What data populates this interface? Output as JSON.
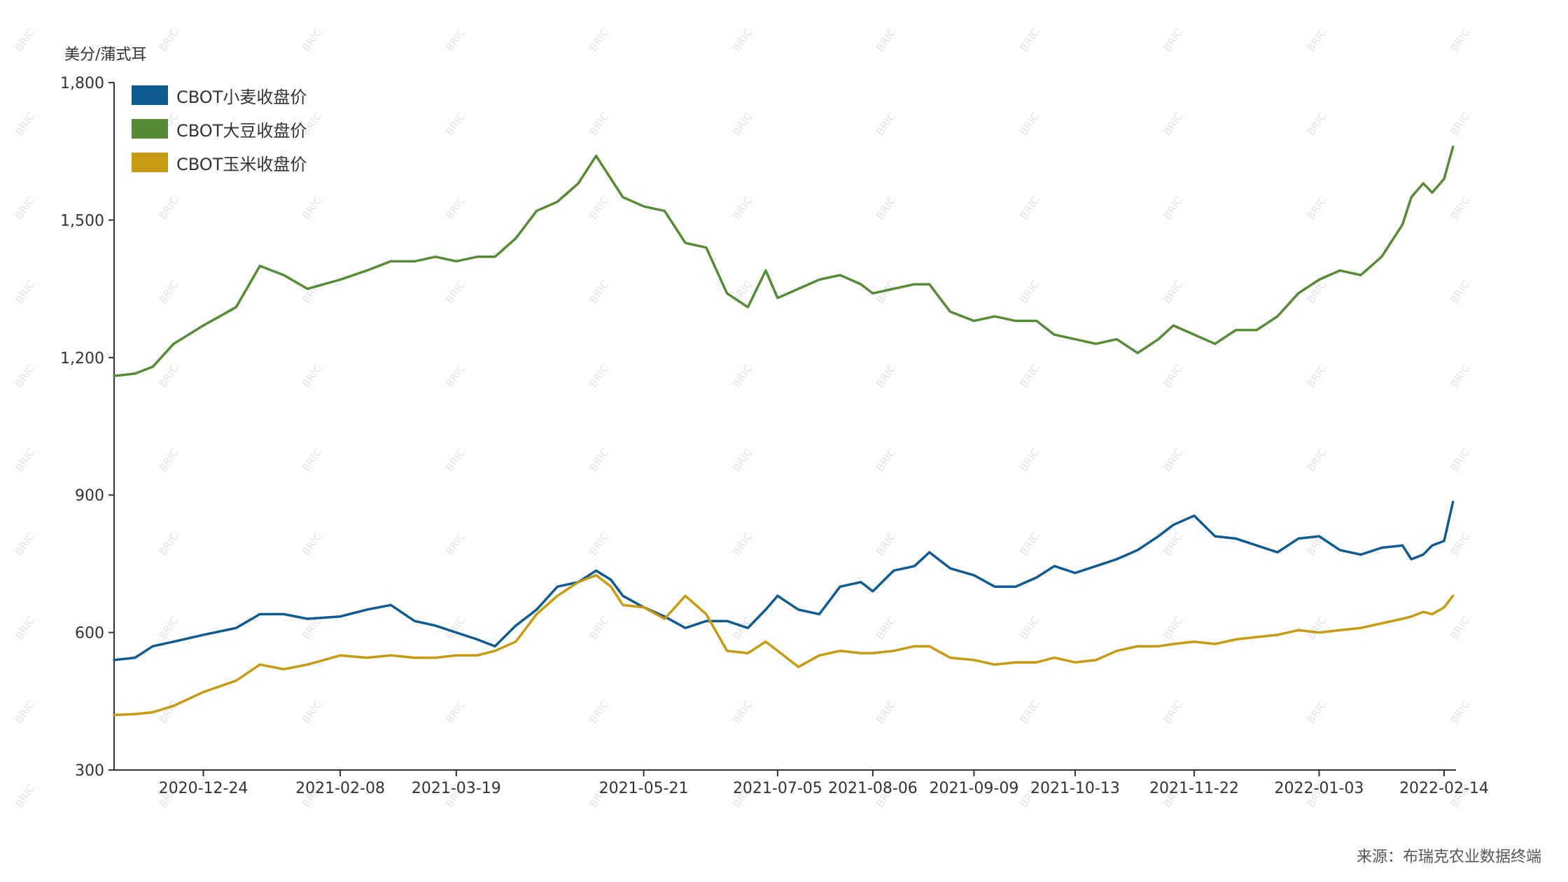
{
  "chart_data": {
    "type": "line",
    "ylabel": "美分/蒲式耳",
    "source": "来源：布瑞克农业数据终端",
    "ylim": [
      300,
      1800
    ],
    "yticks": [
      300,
      600,
      900,
      1200,
      1500,
      1800
    ],
    "ytick_labels": [
      "300",
      "600",
      "900",
      "1,200",
      "1,500",
      "1,800"
    ],
    "xlim": [
      "2020-11-24",
      "2022-02-18"
    ],
    "xticks": [
      "2020-12-24",
      "2021-02-08",
      "2021-03-19",
      "2021-05-21",
      "2021-07-05",
      "2021-08-06",
      "2021-09-09",
      "2021-10-13",
      "2021-11-22",
      "2022-01-03",
      "2022-02-14"
    ],
    "grid": false,
    "legend_position": "top-left",
    "watermark": "BRIC",
    "series": [
      {
        "name": "CBOT小麦收盘价",
        "color": "#0e5a93",
        "points": [
          [
            "2020-11-24",
            540
          ],
          [
            "2020-12-01",
            545
          ],
          [
            "2020-12-07",
            570
          ],
          [
            "2020-12-14",
            580
          ],
          [
            "2020-12-24",
            595
          ],
          [
            "2021-01-04",
            610
          ],
          [
            "2021-01-12",
            640
          ],
          [
            "2021-01-20",
            640
          ],
          [
            "2021-01-28",
            630
          ],
          [
            "2021-02-08",
            635
          ],
          [
            "2021-02-17",
            650
          ],
          [
            "2021-02-25",
            660
          ],
          [
            "2021-03-05",
            625
          ],
          [
            "2021-03-12",
            615
          ],
          [
            "2021-03-19",
            600
          ],
          [
            "2021-03-26",
            585
          ],
          [
            "2021-04-01",
            570
          ],
          [
            "2021-04-08",
            615
          ],
          [
            "2021-04-15",
            650
          ],
          [
            "2021-04-22",
            700
          ],
          [
            "2021-04-29",
            710
          ],
          [
            "2021-05-05",
            735
          ],
          [
            "2021-05-10",
            715
          ],
          [
            "2021-05-14",
            680
          ],
          [
            "2021-05-21",
            655
          ],
          [
            "2021-05-28",
            635
          ],
          [
            "2021-06-04",
            610
          ],
          [
            "2021-06-11",
            625
          ],
          [
            "2021-06-18",
            625
          ],
          [
            "2021-06-25",
            610
          ],
          [
            "2021-07-01",
            650
          ],
          [
            "2021-07-05",
            680
          ],
          [
            "2021-07-12",
            650
          ],
          [
            "2021-07-19",
            640
          ],
          [
            "2021-07-26",
            700
          ],
          [
            "2021-08-02",
            710
          ],
          [
            "2021-08-06",
            690
          ],
          [
            "2021-08-13",
            735
          ],
          [
            "2021-08-20",
            745
          ],
          [
            "2021-08-25",
            775
          ],
          [
            "2021-09-01",
            740
          ],
          [
            "2021-09-09",
            725
          ],
          [
            "2021-09-16",
            700
          ],
          [
            "2021-09-23",
            700
          ],
          [
            "2021-09-30",
            720
          ],
          [
            "2021-10-06",
            745
          ],
          [
            "2021-10-13",
            730
          ],
          [
            "2021-10-20",
            745
          ],
          [
            "2021-10-27",
            760
          ],
          [
            "2021-11-03",
            780
          ],
          [
            "2021-11-10",
            810
          ],
          [
            "2021-11-15",
            835
          ],
          [
            "2021-11-22",
            855
          ],
          [
            "2021-11-29",
            810
          ],
          [
            "2021-12-06",
            805
          ],
          [
            "2021-12-13",
            790
          ],
          [
            "2021-12-20",
            775
          ],
          [
            "2021-12-27",
            805
          ],
          [
            "2022-01-03",
            810
          ],
          [
            "2022-01-10",
            780
          ],
          [
            "2022-01-17",
            770
          ],
          [
            "2022-01-24",
            785
          ],
          [
            "2022-01-31",
            790
          ],
          [
            "2022-02-03",
            760
          ],
          [
            "2022-02-07",
            770
          ],
          [
            "2022-02-10",
            790
          ],
          [
            "2022-02-14",
            800
          ],
          [
            "2022-02-17",
            885
          ]
        ]
      },
      {
        "name": "CBOT大豆收盘价",
        "color": "#568b36",
        "points": [
          [
            "2020-11-24",
            1160
          ],
          [
            "2020-12-01",
            1165
          ],
          [
            "2020-12-07",
            1180
          ],
          [
            "2020-12-14",
            1230
          ],
          [
            "2020-12-24",
            1270
          ],
          [
            "2021-01-04",
            1310
          ],
          [
            "2021-01-12",
            1400
          ],
          [
            "2021-01-20",
            1380
          ],
          [
            "2021-01-28",
            1350
          ],
          [
            "2021-02-08",
            1370
          ],
          [
            "2021-02-17",
            1390
          ],
          [
            "2021-02-25",
            1410
          ],
          [
            "2021-03-05",
            1410
          ],
          [
            "2021-03-12",
            1420
          ],
          [
            "2021-03-19",
            1410
          ],
          [
            "2021-03-26",
            1420
          ],
          [
            "2021-04-01",
            1420
          ],
          [
            "2021-04-08",
            1460
          ],
          [
            "2021-04-15",
            1520
          ],
          [
            "2021-04-22",
            1540
          ],
          [
            "2021-04-29",
            1580
          ],
          [
            "2021-05-05",
            1640
          ],
          [
            "2021-05-10",
            1590
          ],
          [
            "2021-05-14",
            1550
          ],
          [
            "2021-05-21",
            1530
          ],
          [
            "2021-05-28",
            1520
          ],
          [
            "2021-06-04",
            1450
          ],
          [
            "2021-06-11",
            1440
          ],
          [
            "2021-06-18",
            1340
          ],
          [
            "2021-06-25",
            1310
          ],
          [
            "2021-07-01",
            1390
          ],
          [
            "2021-07-05",
            1330
          ],
          [
            "2021-07-12",
            1350
          ],
          [
            "2021-07-19",
            1370
          ],
          [
            "2021-07-26",
            1380
          ],
          [
            "2021-08-02",
            1360
          ],
          [
            "2021-08-06",
            1340
          ],
          [
            "2021-08-13",
            1350
          ],
          [
            "2021-08-20",
            1360
          ],
          [
            "2021-08-25",
            1360
          ],
          [
            "2021-09-01",
            1300
          ],
          [
            "2021-09-09",
            1280
          ],
          [
            "2021-09-16",
            1290
          ],
          [
            "2021-09-23",
            1280
          ],
          [
            "2021-09-30",
            1280
          ],
          [
            "2021-10-06",
            1250
          ],
          [
            "2021-10-13",
            1240
          ],
          [
            "2021-10-20",
            1230
          ],
          [
            "2021-10-27",
            1240
          ],
          [
            "2021-11-03",
            1210
          ],
          [
            "2021-11-10",
            1240
          ],
          [
            "2021-11-15",
            1270
          ],
          [
            "2021-11-22",
            1250
          ],
          [
            "2021-11-29",
            1230
          ],
          [
            "2021-12-06",
            1260
          ],
          [
            "2021-12-13",
            1260
          ],
          [
            "2021-12-20",
            1290
          ],
          [
            "2021-12-27",
            1340
          ],
          [
            "2022-01-03",
            1370
          ],
          [
            "2022-01-10",
            1390
          ],
          [
            "2022-01-17",
            1380
          ],
          [
            "2022-01-24",
            1420
          ],
          [
            "2022-01-31",
            1490
          ],
          [
            "2022-02-03",
            1550
          ],
          [
            "2022-02-07",
            1580
          ],
          [
            "2022-02-10",
            1560
          ],
          [
            "2022-02-14",
            1590
          ],
          [
            "2022-02-17",
            1660
          ]
        ]
      },
      {
        "name": "CBOT玉米收盘价",
        "color": "#c79a10",
        "points": [
          [
            "2020-11-24",
            420
          ],
          [
            "2020-12-01",
            422
          ],
          [
            "2020-12-07",
            426
          ],
          [
            "2020-12-14",
            440
          ],
          [
            "2020-12-24",
            470
          ],
          [
            "2021-01-04",
            495
          ],
          [
            "2021-01-12",
            530
          ],
          [
            "2021-01-20",
            520
          ],
          [
            "2021-01-28",
            530
          ],
          [
            "2021-02-08",
            550
          ],
          [
            "2021-02-17",
            545
          ],
          [
            "2021-02-25",
            550
          ],
          [
            "2021-03-05",
            545
          ],
          [
            "2021-03-12",
            545
          ],
          [
            "2021-03-19",
            550
          ],
          [
            "2021-03-26",
            550
          ],
          [
            "2021-04-01",
            560
          ],
          [
            "2021-04-08",
            580
          ],
          [
            "2021-04-15",
            640
          ],
          [
            "2021-04-22",
            680
          ],
          [
            "2021-04-29",
            710
          ],
          [
            "2021-05-05",
            725
          ],
          [
            "2021-05-10",
            700
          ],
          [
            "2021-05-14",
            660
          ],
          [
            "2021-05-21",
            655
          ],
          [
            "2021-05-28",
            630
          ],
          [
            "2021-06-04",
            680
          ],
          [
            "2021-06-11",
            640
          ],
          [
            "2021-06-18",
            560
          ],
          [
            "2021-06-25",
            555
          ],
          [
            "2021-07-01",
            580
          ],
          [
            "2021-07-05",
            560
          ],
          [
            "2021-07-12",
            525
          ],
          [
            "2021-07-19",
            550
          ],
          [
            "2021-07-26",
            560
          ],
          [
            "2021-08-02",
            555
          ],
          [
            "2021-08-06",
            555
          ],
          [
            "2021-08-13",
            560
          ],
          [
            "2021-08-20",
            570
          ],
          [
            "2021-08-25",
            570
          ],
          [
            "2021-09-01",
            545
          ],
          [
            "2021-09-09",
            540
          ],
          [
            "2021-09-16",
            530
          ],
          [
            "2021-09-23",
            535
          ],
          [
            "2021-09-30",
            535
          ],
          [
            "2021-10-06",
            545
          ],
          [
            "2021-10-13",
            535
          ],
          [
            "2021-10-20",
            540
          ],
          [
            "2021-10-27",
            560
          ],
          [
            "2021-11-03",
            570
          ],
          [
            "2021-11-10",
            570
          ],
          [
            "2021-11-15",
            575
          ],
          [
            "2021-11-22",
            580
          ],
          [
            "2021-11-29",
            575
          ],
          [
            "2021-12-06",
            585
          ],
          [
            "2021-12-13",
            590
          ],
          [
            "2021-12-20",
            595
          ],
          [
            "2021-12-27",
            605
          ],
          [
            "2022-01-03",
            600
          ],
          [
            "2022-01-10",
            605
          ],
          [
            "2022-01-17",
            610
          ],
          [
            "2022-01-24",
            620
          ],
          [
            "2022-01-31",
            630
          ],
          [
            "2022-02-03",
            635
          ],
          [
            "2022-02-07",
            645
          ],
          [
            "2022-02-10",
            640
          ],
          [
            "2022-02-14",
            655
          ],
          [
            "2022-02-17",
            680
          ]
        ]
      }
    ]
  }
}
